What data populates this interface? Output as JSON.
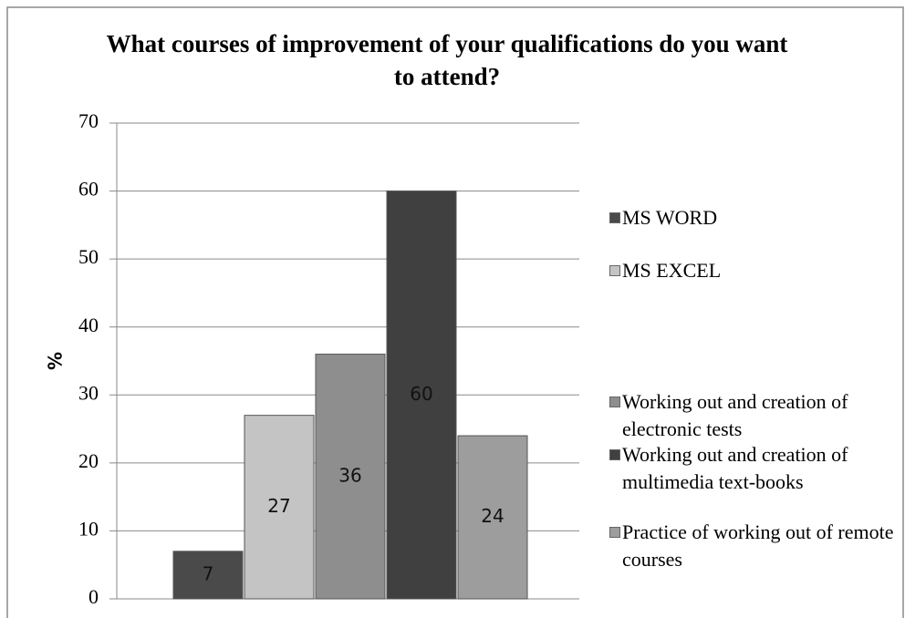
{
  "chart_data": {
    "type": "bar",
    "title": "What courses of improvement of your qualifications do you want to attend?",
    "y_label": "%",
    "ylim": [
      0,
      70
    ],
    "yticks": [
      0,
      10,
      20,
      30,
      40,
      50,
      60,
      70
    ],
    "grid": true,
    "legend": "right",
    "series": [
      {
        "name": "MS WORD",
        "color": "#4a4a4a",
        "values": [
          7
        ]
      },
      {
        "name": "MS EXCEL",
        "color": "#c4c4c4",
        "values": [
          27
        ]
      },
      {
        "name": "Working out and creation of electronic tests",
        "color": "#8e8e8e",
        "values": [
          36
        ]
      },
      {
        "name": "Working out and creation of multimedia text-books",
        "color": "#404040",
        "values": [
          60
        ]
      },
      {
        "name": "Practice of working out of remote courses",
        "color": "#9d9d9d",
        "values": [
          24
        ]
      }
    ]
  }
}
